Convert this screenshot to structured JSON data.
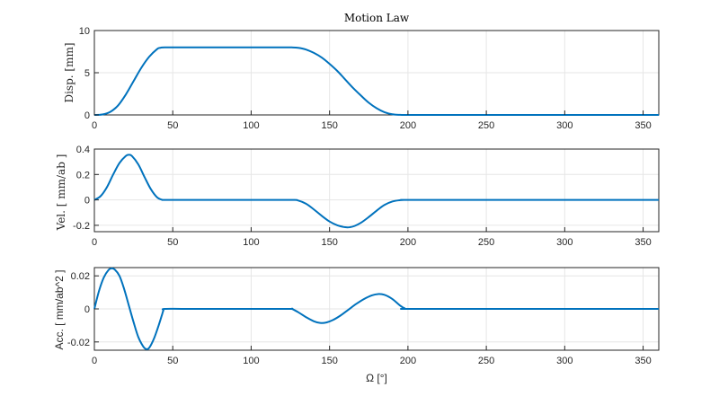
{
  "chart_data": [
    {
      "type": "line",
      "title": "Motion Law",
      "xlabel": "",
      "ylabel": "Disp. [mm]",
      "xlim": [
        0,
        360
      ],
      "ylim": [
        0,
        10
      ],
      "xticks": [
        0,
        50,
        100,
        150,
        200,
        250,
        300,
        350
      ],
      "yticks": [
        0,
        5,
        10
      ],
      "grid": true,
      "series": [
        {
          "color": "#0072BD",
          "x": [
            0,
            5,
            10,
            15,
            20,
            25,
            30,
            35,
            40,
            42,
            45,
            60,
            80,
            100,
            120,
            126,
            130,
            135,
            140,
            145,
            150,
            155,
            160,
            165,
            170,
            175,
            180,
            185,
            190,
            195,
            198,
            200,
            250,
            300,
            360
          ],
          "y": [
            0,
            0.05,
            0.35,
            1.1,
            2.4,
            4.0,
            5.6,
            6.9,
            7.8,
            7.95,
            8.0,
            8.0,
            8.0,
            8.0,
            8.0,
            8.0,
            7.95,
            7.75,
            7.35,
            6.8,
            6.05,
            5.2,
            4.2,
            3.2,
            2.3,
            1.45,
            0.8,
            0.33,
            0.08,
            0.01,
            0,
            0,
            0,
            0,
            0
          ]
        }
      ]
    },
    {
      "type": "line",
      "title": "",
      "xlabel": "",
      "ylabel": "Vel. [ mm/ab ]",
      "xlim": [
        0,
        360
      ],
      "ylim": [
        -0.25,
        0.4
      ],
      "xticks": [
        0,
        50,
        100,
        150,
        200,
        250,
        300,
        350
      ],
      "yticks": [
        -0.2,
        0,
        0.2,
        0.4
      ],
      "grid": true,
      "series": [
        {
          "color": "#0072BD",
          "x": [
            0,
            4,
            8,
            12,
            16,
            20,
            22,
            24,
            28,
            32,
            36,
            40,
            43,
            45,
            60,
            100,
            126,
            130,
            135,
            140,
            145,
            150,
            155,
            160,
            163,
            166,
            170,
            175,
            180,
            185,
            190,
            195,
            198,
            200,
            250,
            300,
            360
          ],
          "y": [
            0,
            0.03,
            0.1,
            0.2,
            0.29,
            0.345,
            0.355,
            0.345,
            0.28,
            0.18,
            0.085,
            0.02,
            0.002,
            0,
            0,
            0,
            0,
            -0.005,
            -0.03,
            -0.075,
            -0.125,
            -0.17,
            -0.2,
            -0.215,
            -0.215,
            -0.205,
            -0.18,
            -0.135,
            -0.085,
            -0.04,
            -0.013,
            -0.002,
            0,
            0,
            0,
            0,
            0
          ]
        }
      ]
    },
    {
      "type": "line",
      "title": "",
      "xlabel": "Ω [°]",
      "ylabel": "Acc. [ mm/ab^2 ]",
      "xlim": [
        0,
        360
      ],
      "ylim": [
        -0.025,
        0.025
      ],
      "xticks": [
        0,
        50,
        100,
        150,
        200,
        250,
        300,
        350
      ],
      "yticks": [
        -0.02,
        0,
        0.02
      ],
      "grid": true,
      "series": [
        {
          "color": "#0072BD",
          "x": [
            0,
            3,
            6,
            9,
            11,
            13,
            16,
            19,
            22,
            25,
            28,
            31,
            33,
            35,
            38,
            41,
            43,
            44,
            45,
            60,
            100,
            124,
            126,
            130,
            135,
            140,
            144,
            148,
            152,
            157,
            162,
            167,
            172,
            177,
            181,
            185,
            190,
            195,
            198,
            200,
            250,
            300,
            360
          ],
          "y": [
            0,
            0.011,
            0.019,
            0.0235,
            0.0245,
            0.0238,
            0.02,
            0.012,
            0.002,
            -0.008,
            -0.017,
            -0.0225,
            -0.0243,
            -0.0235,
            -0.018,
            -0.01,
            -0.004,
            -0.001,
            0,
            0,
            0,
            0,
            0,
            -0.002,
            -0.005,
            -0.0075,
            -0.0085,
            -0.0082,
            -0.0068,
            -0.004,
            -0.0005,
            0.003,
            0.006,
            0.0082,
            0.009,
            0.0085,
            0.006,
            0.002,
            0.0003,
            0,
            0,
            0,
            0
          ]
        }
      ]
    }
  ]
}
